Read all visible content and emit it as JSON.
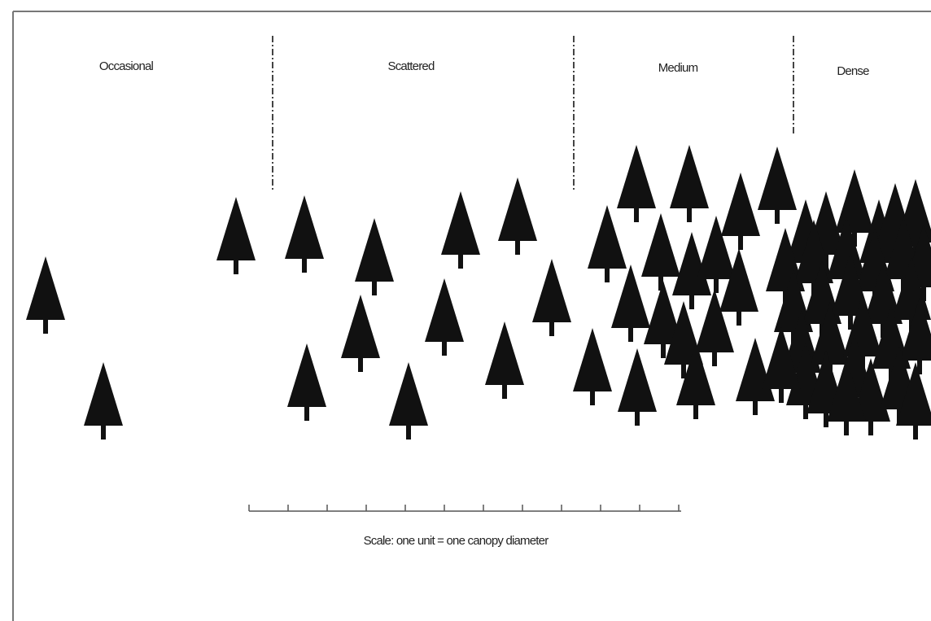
{
  "zones": [
    "Occasional",
    "Scattered",
    "Medium",
    "Dense"
  ],
  "scale_caption": "Scale: one unit = one canopy diameter"
}
